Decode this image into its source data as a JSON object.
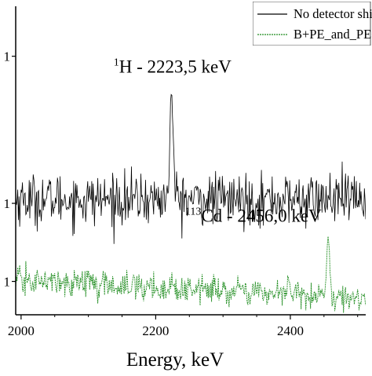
{
  "chart_data": {
    "type": "line",
    "xlabel": "Energy, keV",
    "ylabel": "",
    "xlim": [
      1992,
      2512
    ],
    "ylog": true,
    "ylim": [
      0.0032,
      0.075
    ],
    "x_ticks": [
      2000,
      2200,
      2400
    ],
    "x_tick_labels": [
      "2000",
      "2200",
      "2400"
    ],
    "y_ticks": [
      0.0045,
      0.01,
      0.045
    ],
    "y_tick_labels": [
      "1",
      "1",
      "1"
    ],
    "legend_position": "top-right",
    "grid": false,
    "series": [
      {
        "name": "No detector shielding (beam on)",
        "color": "#000000",
        "style": "solid",
        "baseline": 0.0104,
        "noise": 0.13,
        "peaks": [
          {
            "x": 2223.5,
            "y": 0.0297,
            "width": 2.2
          }
        ]
      },
      {
        "name": "B+PE_and_PE+Cd_neutron_colli",
        "color": "#1e8c1e",
        "style": "dashed",
        "baseline": 0.00455,
        "baseline_end": 0.0038,
        "noise": 0.07,
        "peaks": [
          {
            "x": 2456.0,
            "y": 0.0072,
            "width": 2.0
          },
          {
            "x": 2398.0,
            "y": 0.0046,
            "width": 1.5
          },
          {
            "x": 2100.0,
            "y": 0.0049,
            "width": 1.5
          }
        ]
      }
    ],
    "annotations": [
      {
        "text_sup": "1",
        "text": "H - 2223,5 keV",
        "x": 2225,
        "y": 0.038
      },
      {
        "text_sup": "113",
        "text": "Cd - 2456,0 keV",
        "x": 2345,
        "y": 0.0083
      }
    ]
  }
}
